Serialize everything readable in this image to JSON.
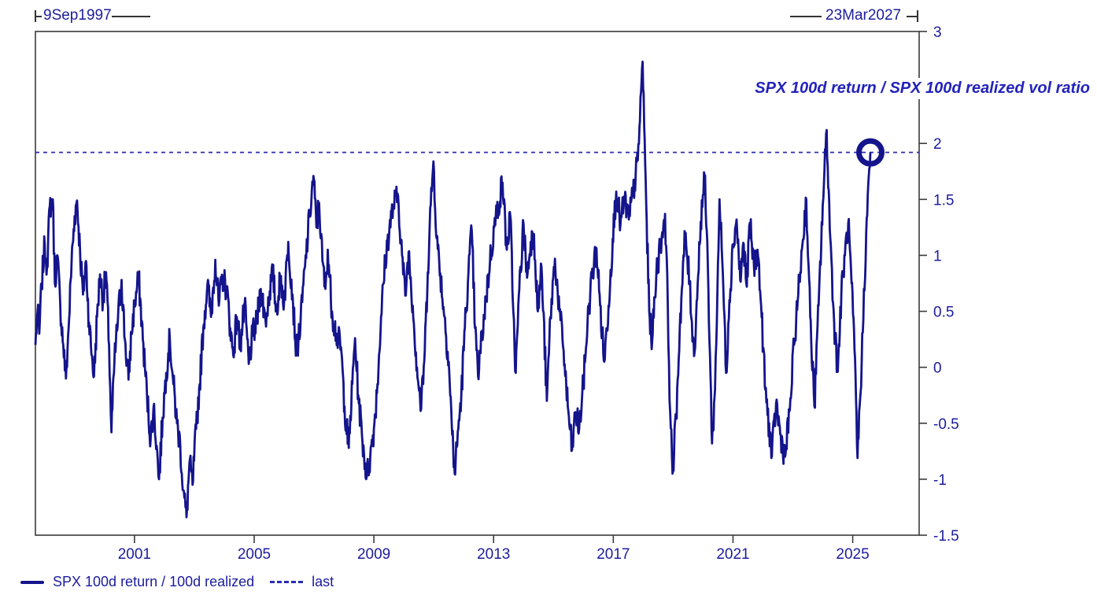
{
  "header": {
    "start_label": "9Sep1997",
    "end_label": "23Mar2027"
  },
  "title": "SPX 100d return / SPX 100d realized vol ratio",
  "legend": {
    "series_label": "SPX 100d return / 100d realized",
    "last_label": "last"
  },
  "colors": {
    "series": "#14148C",
    "last_line": "#2b2bb0",
    "axis": "#3a3a3a",
    "tick_text": "#1c1c9e",
    "title_text": "#2323bb",
    "background": "#ffffff"
  },
  "chart_data": {
    "type": "line",
    "title": "SPX 100d return / SPX 100d realized vol ratio",
    "x_range": [
      1997.69,
      2027.22
    ],
    "y_range": [
      -1.5,
      3
    ],
    "grid": false,
    "legend_position": "bottom-left",
    "x_ticks": [
      {
        "value": 2001,
        "label": "2001"
      },
      {
        "value": 2005,
        "label": "2005"
      },
      {
        "value": 2009,
        "label": "2009"
      },
      {
        "value": 2013,
        "label": "2013"
      },
      {
        "value": 2017,
        "label": "2017"
      },
      {
        "value": 2021,
        "label": "2021"
      },
      {
        "value": 2025,
        "label": "2025"
      }
    ],
    "y_ticks": [
      {
        "value": 3,
        "label": "3"
      },
      {
        "value": 2,
        "label": "2"
      },
      {
        "value": 1.5,
        "label": "1.5"
      },
      {
        "value": 1,
        "label": "1"
      },
      {
        "value": 0.5,
        "label": "0.5"
      },
      {
        "value": 0,
        "label": "0"
      },
      {
        "value": -0.5,
        "label": "-0.5"
      },
      {
        "value": -1,
        "label": "-1"
      },
      {
        "value": -1.5,
        "label": "-1.5"
      }
    ],
    "reference_line": {
      "name": "last",
      "value": 1.92,
      "style": "dashed"
    },
    "marker": {
      "type": "ring",
      "x": 2025.59,
      "y": 1.92
    },
    "series": [
      {
        "name": "SPX 100d return / 100d realized",
        "points": [
          [
            1997.69,
            0.2
          ],
          [
            1997.76,
            0.5
          ],
          [
            1997.82,
            0.3
          ],
          [
            1997.9,
            0.75
          ],
          [
            1998.0,
            1.1
          ],
          [
            1998.08,
            0.9
          ],
          [
            1998.17,
            1.44
          ],
          [
            1998.27,
            1.5
          ],
          [
            1998.34,
            0.75
          ],
          [
            1998.42,
            1.0
          ],
          [
            1998.52,
            0.55
          ],
          [
            1998.62,
            0.2
          ],
          [
            1998.71,
            -0.1
          ],
          [
            1998.8,
            0.35
          ],
          [
            1998.9,
            0.95
          ],
          [
            1999.0,
            1.35
          ],
          [
            1999.08,
            1.49
          ],
          [
            1999.18,
            1.05
          ],
          [
            1999.28,
            0.65
          ],
          [
            1999.38,
            0.95
          ],
          [
            1999.48,
            0.4
          ],
          [
            1999.58,
            0.1
          ],
          [
            1999.65,
            -0.08
          ],
          [
            1999.75,
            0.45
          ],
          [
            1999.85,
            0.83
          ],
          [
            1999.95,
            0.6
          ],
          [
            2000.05,
            0.85
          ],
          [
            2000.15,
            0.2
          ],
          [
            2000.23,
            -0.58
          ],
          [
            2000.33,
            0.05
          ],
          [
            2000.45,
            0.45
          ],
          [
            2000.57,
            0.78
          ],
          [
            2000.68,
            0.25
          ],
          [
            2000.8,
            -0.11
          ],
          [
            2000.9,
            0.3
          ],
          [
            2001.0,
            0.55
          ],
          [
            2001.14,
            0.8
          ],
          [
            2001.28,
            0.25
          ],
          [
            2001.42,
            -0.25
          ],
          [
            2001.54,
            -0.65
          ],
          [
            2001.64,
            -0.35
          ],
          [
            2001.74,
            -0.7
          ],
          [
            2001.82,
            -1.0
          ],
          [
            2001.94,
            -0.45
          ],
          [
            2002.06,
            -0.05
          ],
          [
            2002.18,
            0.26
          ],
          [
            2002.3,
            -0.15
          ],
          [
            2002.42,
            -0.5
          ],
          [
            2002.53,
            -0.7
          ],
          [
            2002.63,
            -1.1
          ],
          [
            2002.74,
            -1.34
          ],
          [
            2002.84,
            -0.85
          ],
          [
            2002.94,
            -1.05
          ],
          [
            2003.06,
            -0.55
          ],
          [
            2003.18,
            -0.15
          ],
          [
            2003.3,
            0.35
          ],
          [
            2003.44,
            0.75
          ],
          [
            2003.56,
            0.45
          ],
          [
            2003.7,
            0.96
          ],
          [
            2003.82,
            0.55
          ],
          [
            2003.94,
            0.8
          ],
          [
            2004.08,
            0.71
          ],
          [
            2004.2,
            0.35
          ],
          [
            2004.3,
            0.11
          ],
          [
            2004.42,
            0.45
          ],
          [
            2004.54,
            0.2
          ],
          [
            2004.68,
            0.56
          ],
          [
            2004.82,
            0.03
          ],
          [
            2004.94,
            0.28
          ],
          [
            2005.08,
            0.39
          ],
          [
            2005.22,
            0.7
          ],
          [
            2005.38,
            0.42
          ],
          [
            2005.52,
            0.68
          ],
          [
            2005.62,
            0.85
          ],
          [
            2005.74,
            0.5
          ],
          [
            2005.88,
            0.8
          ],
          [
            2006.0,
            0.58
          ],
          [
            2006.14,
            1.12
          ],
          [
            2006.28,
            0.65
          ],
          [
            2006.41,
            0.13
          ],
          [
            2006.55,
            0.4
          ],
          [
            2006.7,
            0.9
          ],
          [
            2006.85,
            1.35
          ],
          [
            2006.98,
            1.71
          ],
          [
            2007.08,
            1.25
          ],
          [
            2007.17,
            1.47
          ],
          [
            2007.28,
            0.95
          ],
          [
            2007.38,
            0.7
          ],
          [
            2007.46,
            1.05
          ],
          [
            2007.6,
            0.5
          ],
          [
            2007.74,
            0.3
          ],
          [
            2007.9,
            0.18
          ],
          [
            2008.02,
            -0.35
          ],
          [
            2008.16,
            -0.72
          ],
          [
            2008.28,
            -0.15
          ],
          [
            2008.37,
            0.26
          ],
          [
            2008.48,
            -0.25
          ],
          [
            2008.6,
            -0.6
          ],
          [
            2008.76,
            -0.98
          ],
          [
            2008.88,
            -0.8
          ],
          [
            2009.0,
            -0.55
          ],
          [
            2009.12,
            -0.15
          ],
          [
            2009.24,
            0.45
          ],
          [
            2009.38,
            0.95
          ],
          [
            2009.52,
            1.25
          ],
          [
            2009.66,
            1.45
          ],
          [
            2009.81,
            1.53
          ],
          [
            2009.94,
            1.0
          ],
          [
            2010.05,
            0.64
          ],
          [
            2010.16,
            1.03
          ],
          [
            2010.3,
            0.55
          ],
          [
            2010.44,
            0.0
          ],
          [
            2010.58,
            -0.37
          ],
          [
            2010.7,
            0.15
          ],
          [
            2010.8,
            0.85
          ],
          [
            2010.9,
            1.45
          ],
          [
            2010.99,
            1.84
          ],
          [
            2011.1,
            1.15
          ],
          [
            2011.22,
            0.84
          ],
          [
            2011.36,
            0.45
          ],
          [
            2011.5,
            0.05
          ],
          [
            2011.6,
            -0.5
          ],
          [
            2011.7,
            -0.95
          ],
          [
            2011.82,
            -0.55
          ],
          [
            2011.92,
            -0.25
          ],
          [
            2012.04,
            0.35
          ],
          [
            2012.16,
            0.85
          ],
          [
            2012.27,
            1.22
          ],
          [
            2012.38,
            0.35
          ],
          [
            2012.48,
            -0.08
          ],
          [
            2012.6,
            0.25
          ],
          [
            2012.74,
            0.6
          ],
          [
            2012.88,
            0.95
          ],
          [
            2013.02,
            1.25
          ],
          [
            2013.16,
            1.45
          ],
          [
            2013.3,
            1.65
          ],
          [
            2013.44,
            1.05
          ],
          [
            2013.56,
            1.35
          ],
          [
            2013.66,
            0.5
          ],
          [
            2013.74,
            -0.05
          ],
          [
            2013.86,
            0.7
          ],
          [
            2014.0,
            1.28
          ],
          [
            2014.12,
            0.8
          ],
          [
            2014.24,
            1.12
          ],
          [
            2014.35,
            1.19
          ],
          [
            2014.48,
            0.5
          ],
          [
            2014.6,
            0.9
          ],
          [
            2014.78,
            -0.3
          ],
          [
            2014.9,
            0.45
          ],
          [
            2015.05,
            0.97
          ],
          [
            2015.2,
            0.5
          ],
          [
            2015.34,
            0.15
          ],
          [
            2015.48,
            -0.35
          ],
          [
            2015.62,
            -0.74
          ],
          [
            2015.74,
            -0.4
          ],
          [
            2015.86,
            -0.55
          ],
          [
            2016.0,
            -0.15
          ],
          [
            2016.14,
            0.4
          ],
          [
            2016.28,
            0.8
          ],
          [
            2016.44,
            1.06
          ],
          [
            2016.56,
            0.55
          ],
          [
            2016.7,
            0.05
          ],
          [
            2016.84,
            0.55
          ],
          [
            2016.98,
            1.15
          ],
          [
            2017.1,
            1.57
          ],
          [
            2017.24,
            1.28
          ],
          [
            2017.38,
            1.5
          ],
          [
            2017.52,
            1.32
          ],
          [
            2017.66,
            1.55
          ],
          [
            2017.82,
            1.85
          ],
          [
            2017.98,
            2.73
          ],
          [
            2018.1,
            1.45
          ],
          [
            2018.2,
            0.5
          ],
          [
            2018.3,
            0.24
          ],
          [
            2018.44,
            0.85
          ],
          [
            2018.58,
            1.1
          ],
          [
            2018.73,
            1.37
          ],
          [
            2018.82,
            0.55
          ],
          [
            2018.9,
            -0.4
          ],
          [
            2018.98,
            -0.95
          ],
          [
            2019.1,
            -0.45
          ],
          [
            2019.22,
            0.35
          ],
          [
            2019.4,
            1.19
          ],
          [
            2019.55,
            0.75
          ],
          [
            2019.7,
            0.1
          ],
          [
            2019.82,
            0.75
          ],
          [
            2019.92,
            1.3
          ],
          [
            2020.05,
            1.72
          ],
          [
            2020.16,
            0.9
          ],
          [
            2020.3,
            -0.68
          ],
          [
            2020.4,
            -0.2
          ],
          [
            2020.48,
            0.7
          ],
          [
            2020.55,
            1.5
          ],
          [
            2020.66,
            0.85
          ],
          [
            2020.77,
            -0.05
          ],
          [
            2020.88,
            0.6
          ],
          [
            2021.0,
            1.1
          ],
          [
            2021.12,
            1.32
          ],
          [
            2021.24,
            0.78
          ],
          [
            2021.36,
            1.1
          ],
          [
            2021.46,
            0.72
          ],
          [
            2021.56,
            1.29
          ],
          [
            2021.7,
            0.9
          ],
          [
            2021.82,
            1.05
          ],
          [
            2021.94,
            0.55
          ],
          [
            2022.08,
            -0.2
          ],
          [
            2022.3,
            -0.79
          ],
          [
            2022.44,
            -0.32
          ],
          [
            2022.58,
            -0.6
          ],
          [
            2022.74,
            -0.8
          ],
          [
            2022.9,
            -0.38
          ],
          [
            2023.04,
            0.2
          ],
          [
            2023.18,
            0.65
          ],
          [
            2023.32,
            1.1
          ],
          [
            2023.45,
            1.5
          ],
          [
            2023.58,
            0.45
          ],
          [
            2023.72,
            -0.35
          ],
          [
            2023.86,
            0.55
          ],
          [
            2024.0,
            1.45
          ],
          [
            2024.13,
            2.12
          ],
          [
            2024.25,
            1.15
          ],
          [
            2024.38,
            0.4
          ],
          [
            2024.5,
            -0.04
          ],
          [
            2024.62,
            0.65
          ],
          [
            2024.74,
            1.0
          ],
          [
            2024.85,
            1.29
          ],
          [
            2024.96,
            0.75
          ],
          [
            2025.06,
            0.15
          ],
          [
            2025.16,
            -0.81
          ],
          [
            2025.3,
            0.05
          ],
          [
            2025.45,
            1.2
          ],
          [
            2025.59,
            1.92
          ]
        ]
      }
    ],
    "render_hints": {
      "noise_amplitude": 0.13,
      "noise_step_years": 0.018,
      "seed": 7
    }
  }
}
